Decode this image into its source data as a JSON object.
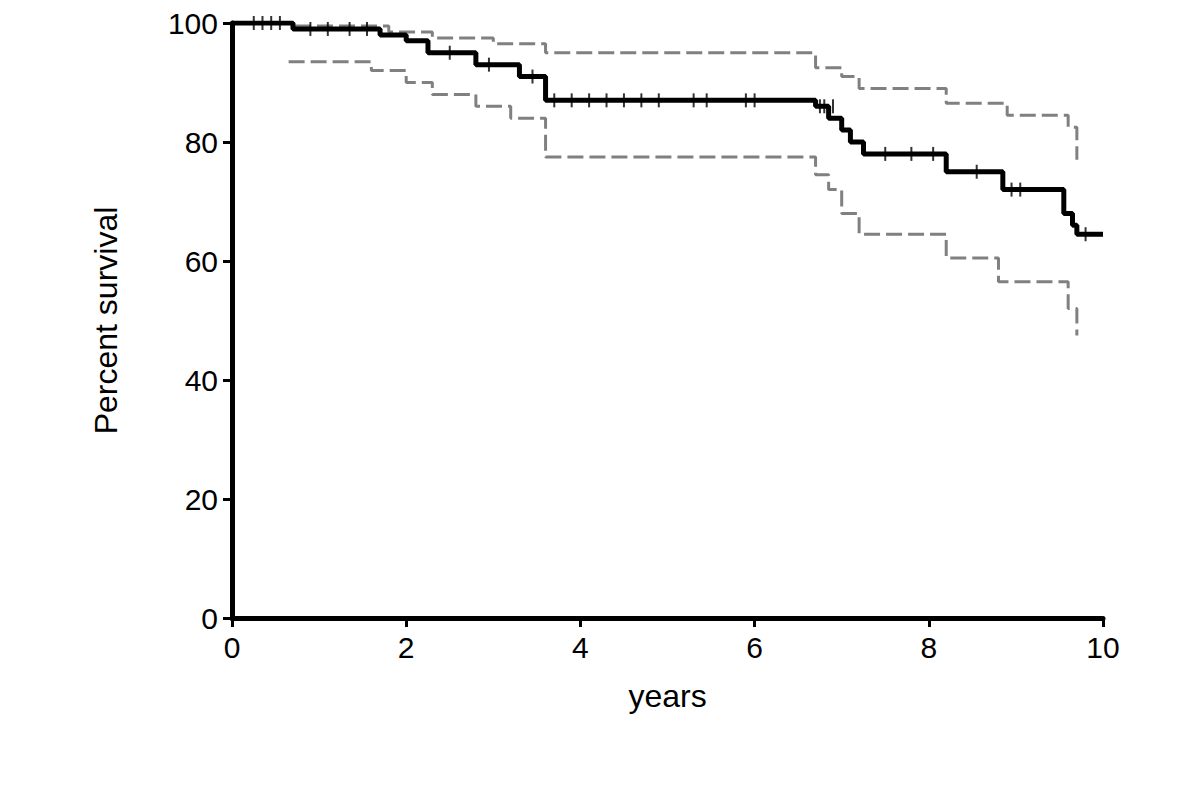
{
  "chart_data": {
    "type": "line",
    "x_label": "years",
    "y_label": "Percent survival",
    "xlim": [
      0,
      10
    ],
    "xticks": [
      0,
      2,
      4,
      6,
      8,
      10
    ],
    "ylim": [
      0,
      100
    ],
    "yticks": [
      0,
      20,
      40,
      60,
      80,
      100
    ],
    "grid": false,
    "series": [
      {
        "type": "line",
        "color": "#000000",
        "line_style": "solid",
        "x": [
          0,
          0.7,
          1.7,
          2.0,
          2.25,
          2.8,
          3.3,
          3.6,
          6.7,
          6.85,
          7.0,
          7.1,
          7.25,
          8.2,
          8.85,
          9.55,
          9.65,
          9.7,
          10
        ],
        "values": [
          100,
          99,
          98,
          97,
          95,
          93,
          91,
          87,
          86,
          84,
          82,
          80,
          78,
          75,
          72,
          68,
          66,
          64.5,
          64.5
        ]
      },
      {
        "type": "line",
        "color": "#808080",
        "line_style": "dashed",
        "x": [
          0,
          0.7,
          1.8,
          2.3,
          3.0,
          3.6,
          6.7,
          7.0,
          7.2,
          8.2,
          8.9,
          9.6,
          9.7
        ],
        "values": [
          100,
          99.5,
          98.5,
          97.5,
          96.5,
          95,
          92.5,
          91,
          89,
          86.5,
          84.5,
          82.5,
          77
        ]
      },
      {
        "type": "line",
        "color": "#808080",
        "line_style": "dashed",
        "x": [
          0.65,
          1.6,
          2.0,
          2.3,
          2.8,
          3.2,
          3.6,
          6.7,
          6.85,
          7.0,
          7.2,
          8.2,
          8.8,
          9.6,
          9.7
        ],
        "values": [
          93.5,
          92,
          90,
          88,
          86,
          84,
          77.5,
          74.5,
          72,
          68,
          64.5,
          60.5,
          56.5,
          52,
          47.5
        ]
      },
      {
        "type": "scatter",
        "color": "#000000",
        "marker": "vline",
        "x": [
          0.25,
          0.35,
          0.45,
          0.55,
          0.9,
          1.1,
          1.35,
          1.55,
          2.5,
          2.95,
          3.45,
          3.7,
          3.9,
          4.1,
          4.3,
          4.5,
          4.7,
          4.9,
          5.3,
          5.45,
          5.9,
          6.0,
          6.75,
          6.8,
          6.9,
          7.5,
          7.8,
          8.05,
          8.55,
          8.95,
          9.05,
          9.8
        ],
        "values": [
          100,
          100,
          100,
          100,
          99,
          99,
          99,
          99,
          95,
          93,
          91,
          87,
          87,
          87,
          87,
          87,
          87,
          87,
          87,
          87,
          87,
          87,
          86,
          86,
          86,
          78,
          78,
          78,
          75,
          72,
          72,
          64.5
        ]
      }
    ]
  }
}
